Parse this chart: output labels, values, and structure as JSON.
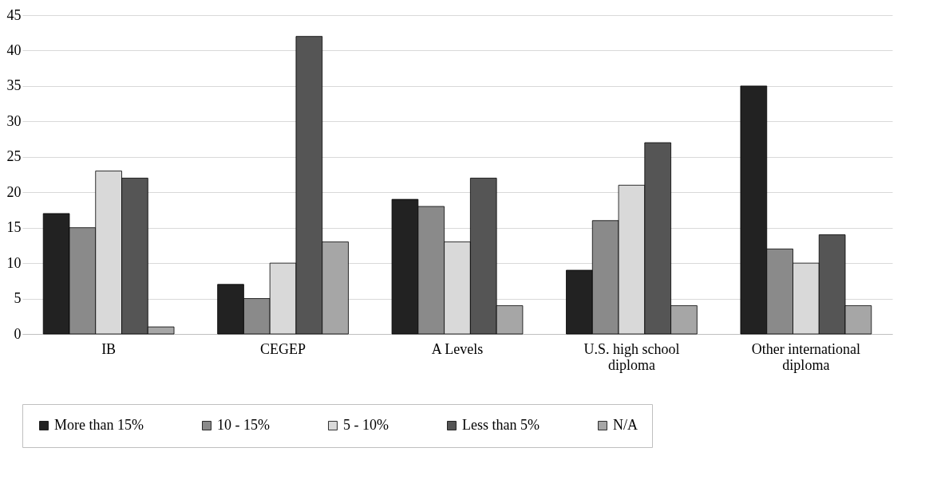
{
  "chart_data": {
    "type": "bar",
    "categories": [
      "IB",
      "CEGEP",
      "A Levels",
      "U.S. high school diploma",
      "Other international diploma"
    ],
    "series": [
      {
        "name": "More than 15%",
        "color": "#222222",
        "values": [
          17,
          7,
          19,
          9,
          35
        ]
      },
      {
        "name": "10 - 15%",
        "color": "#8a8a8a",
        "values": [
          15,
          5,
          18,
          16,
          12
        ]
      },
      {
        "name": "5 - 10%",
        "color": "#d9d9d9",
        "values": [
          23,
          10,
          13,
          21,
          10
        ]
      },
      {
        "name": "Less than 5%",
        "color": "#555555",
        "values": [
          22,
          42,
          22,
          27,
          14
        ]
      },
      {
        "name": "N/A",
        "color": "#a6a6a6",
        "values": [
          1,
          13,
          4,
          4,
          4
        ]
      }
    ],
    "ylim": [
      0,
      45
    ],
    "yticks": [
      0,
      5,
      10,
      15,
      20,
      25,
      30,
      35,
      40,
      45
    ],
    "grid": "y",
    "legend": "bottom"
  }
}
